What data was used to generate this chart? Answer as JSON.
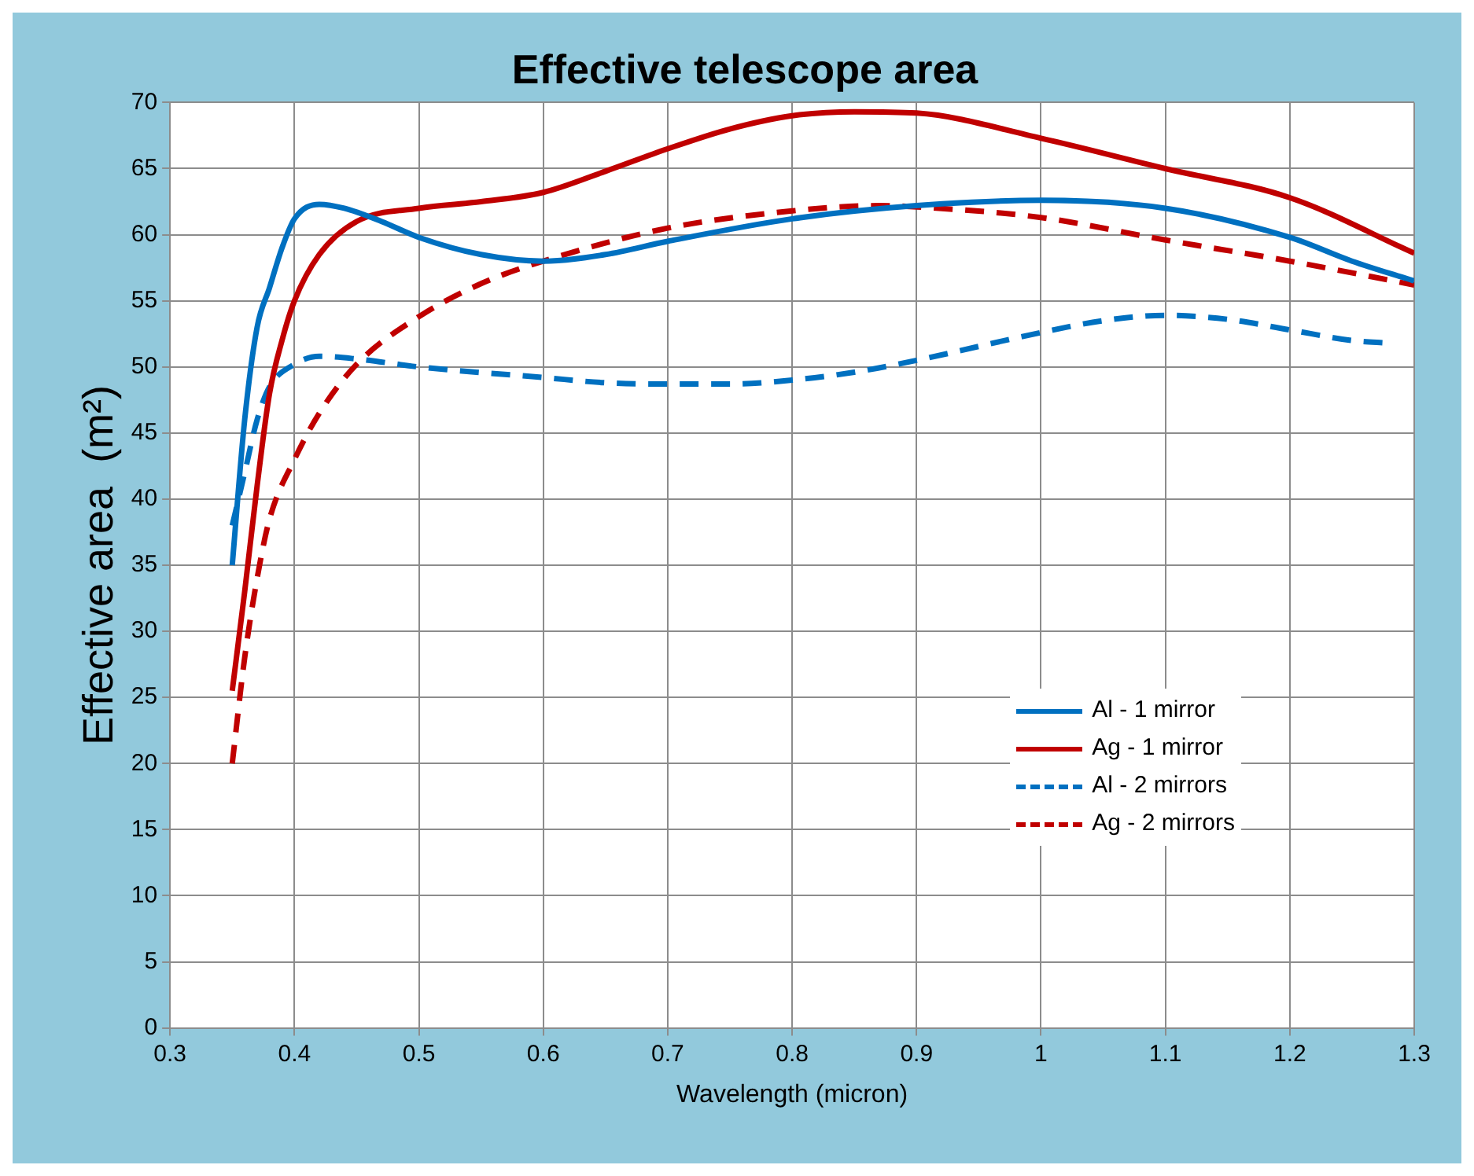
{
  "chart_data": {
    "type": "line",
    "title": "Effective telescope area",
    "xlabel": "Wavelength (micron)",
    "ylabel": "Effective area  (m²)",
    "xlim": [
      0.3,
      1.3
    ],
    "xticks": [
      0.3,
      0.4,
      0.5,
      0.6,
      0.7,
      0.8,
      0.9,
      1,
      1.1,
      1.2,
      1.3
    ],
    "ylim": [
      0,
      70
    ],
    "yticks": [
      0,
      5,
      10,
      15,
      20,
      25,
      30,
      35,
      40,
      45,
      50,
      55,
      60,
      65,
      70
    ],
    "grid": true,
    "legend": "right",
    "marker": "none",
    "series": [
      {
        "name": "Al - 1 mirror",
        "color": "#0070c0",
        "line_style": "solid",
        "x": [
          0.35,
          0.36,
          0.37,
          0.38,
          0.39,
          0.4,
          0.42,
          0.44,
          0.47,
          0.5,
          0.55,
          0.6,
          0.65,
          0.7,
          0.8,
          0.9,
          1.0,
          1.1,
          1.2,
          1.25,
          1.3
        ],
        "values": [
          35,
          46,
          53,
          56,
          59,
          61.2,
          62.3,
          62,
          61,
          59.8,
          58.5,
          58,
          58.5,
          59.5,
          61.2,
          62.2,
          62.6,
          62,
          59.8,
          58,
          56.5
        ]
      },
      {
        "name": "Ag - 1 mirror",
        "color": "#c00000",
        "line_style": "solid",
        "x": [
          0.35,
          0.36,
          0.37,
          0.38,
          0.39,
          0.4,
          0.42,
          0.45,
          0.5,
          0.55,
          0.6,
          0.65,
          0.7,
          0.75,
          0.8,
          0.85,
          0.9,
          1.0,
          1.1,
          1.2,
          1.3
        ],
        "values": [
          25.5,
          33,
          41,
          48,
          52,
          55,
          58.5,
          61,
          62,
          62.5,
          63.2,
          64.8,
          66.5,
          68,
          69,
          69.3,
          69.2,
          67.3,
          65,
          62.8,
          58.6
        ]
      },
      {
        "name": "Al - 2 mirrors",
        "color": "#0070c0",
        "line_style": "dashed",
        "x": [
          0.35,
          0.36,
          0.37,
          0.38,
          0.4,
          0.42,
          0.45,
          0.5,
          0.6,
          0.65,
          0.7,
          0.75,
          0.8,
          0.85,
          0.9,
          1.0,
          1.05,
          1.1,
          1.15,
          1.2,
          1.25,
          1.28
        ],
        "values": [
          38,
          42,
          46,
          48.5,
          50.2,
          50.8,
          50.6,
          50,
          49.2,
          48.8,
          48.7,
          48.7,
          49,
          49.6,
          50.5,
          52.6,
          53.5,
          53.9,
          53.6,
          52.8,
          52,
          51.8
        ]
      },
      {
        "name": "Ag - 2 mirrors",
        "color": "#c00000",
        "line_style": "dashed",
        "x": [
          0.35,
          0.36,
          0.37,
          0.38,
          0.4,
          0.42,
          0.45,
          0.5,
          0.55,
          0.6,
          0.7,
          0.8,
          0.87,
          0.9,
          1.0,
          1.1,
          1.2,
          1.3
        ],
        "values": [
          20,
          28,
          34,
          38.5,
          43,
          46.5,
          50.2,
          53.8,
          56.3,
          58,
          60.5,
          61.8,
          62.2,
          62.1,
          61.3,
          59.6,
          58,
          56.2
        ]
      }
    ]
  }
}
